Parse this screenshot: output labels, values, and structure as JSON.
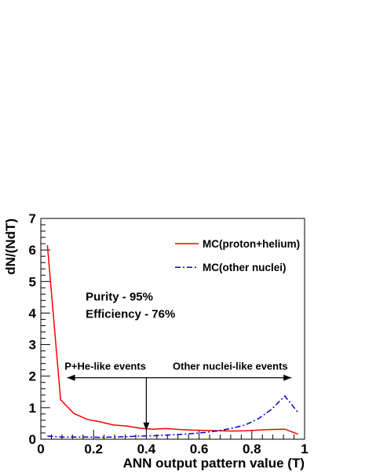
{
  "colors": {
    "proton_helium": "#ff0000",
    "other_nuclei": "#0000cc",
    "axis": "#000000",
    "background": "#ffffff"
  },
  "chart_data": {
    "type": "line",
    "xlabel": "ANN output pattern value (T)",
    "ylabel": "dN/(NdT)",
    "xlim": [
      0,
      1
    ],
    "ylim": [
      0,
      7
    ],
    "x_ticks": [
      "0",
      "0.2",
      "0.4",
      "0.6",
      "0.8",
      "1"
    ],
    "y_ticks": [
      "0",
      "1",
      "2",
      "3",
      "4",
      "5",
      "6",
      "7"
    ],
    "grid": false,
    "legend_position": "top-right",
    "series": [
      {
        "name": "MC(proton+helium)",
        "style": "solid",
        "x": [
          0.025,
          0.075,
          0.125,
          0.175,
          0.225,
          0.275,
          0.325,
          0.375,
          0.425,
          0.475,
          0.525,
          0.575,
          0.625,
          0.675,
          0.725,
          0.775,
          0.825,
          0.875,
          0.925,
          0.975
        ],
        "y": [
          6.15,
          1.25,
          0.82,
          0.63,
          0.55,
          0.45,
          0.42,
          0.35,
          0.32,
          0.34,
          0.31,
          0.29,
          0.28,
          0.27,
          0.26,
          0.27,
          0.29,
          0.31,
          0.32,
          0.16
        ]
      },
      {
        "name": "MC(other nuclei)",
        "style": "dashdot",
        "x": [
          0.025,
          0.075,
          0.125,
          0.175,
          0.225,
          0.275,
          0.325,
          0.375,
          0.425,
          0.475,
          0.525,
          0.575,
          0.625,
          0.675,
          0.725,
          0.775,
          0.825,
          0.875,
          0.925,
          0.975
        ],
        "y": [
          0.1,
          0.07,
          0.07,
          0.07,
          0.06,
          0.07,
          0.08,
          0.1,
          0.11,
          0.13,
          0.15,
          0.18,
          0.22,
          0.27,
          0.35,
          0.45,
          0.65,
          0.95,
          1.37,
          0.85
        ]
      }
    ],
    "annotations": {
      "purity": "Purity - 95%",
      "efficiency": "Efficiency - 76%",
      "left_region": "P+He-like events",
      "right_region": "Other nuclei-like events",
      "cut_value": 0.4,
      "arrow_y": 1.95,
      "arrow_x_range": [
        0.1,
        0.95
      ],
      "annot_positions": {
        "purity": [
          0.17,
          4.4
        ],
        "efficiency": [
          0.17,
          3.85
        ],
        "left_region": [
          0.09,
          2.2
        ],
        "right_region": [
          0.5,
          2.2
        ]
      }
    }
  }
}
